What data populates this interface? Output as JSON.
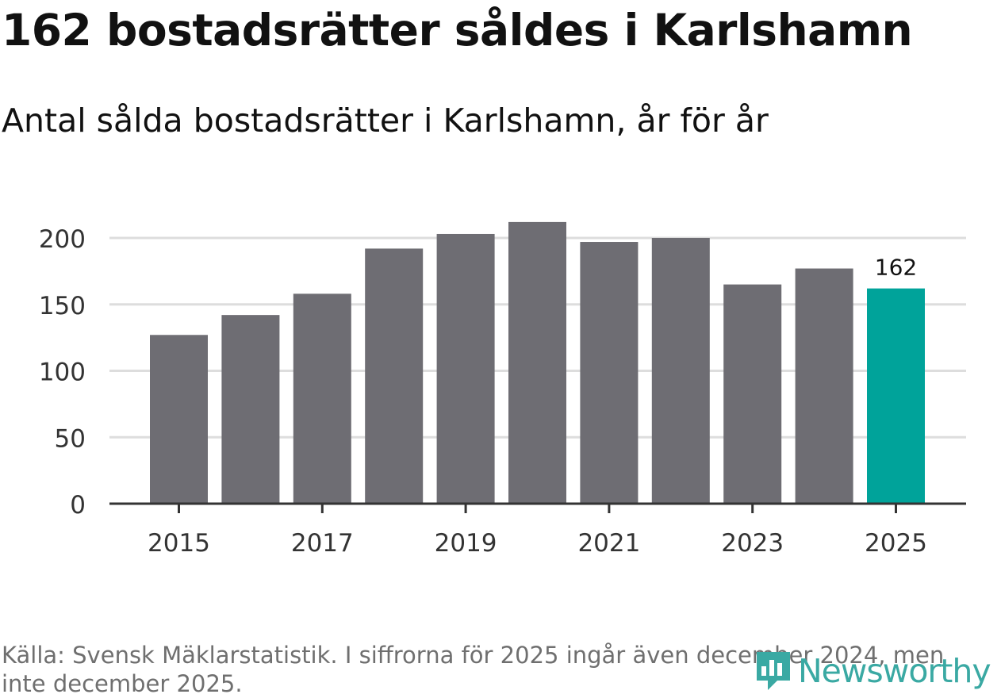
{
  "title": "162 bostadsrätter såldes i Karlshamn",
  "subtitle": "Antal sålda bostadsrätter i Karlshamn, år för år",
  "source": "Källa: Svensk Mäklarstatistik. I siffrorna för 2025 ingår även december 2024, men inte december 2025.",
  "brand": {
    "name": "Newsworthy",
    "icon": "newsworthy-logo-icon",
    "color": "#3aa9a3"
  },
  "colors": {
    "bar": "#6e6d73",
    "highlight": "#00a39a",
    "grid": "#dddddd",
    "axis": "#333333"
  },
  "chart_data": {
    "type": "bar",
    "categories": [
      "2015",
      "2016",
      "2017",
      "2018",
      "2019",
      "2020",
      "2021",
      "2022",
      "2023",
      "2024",
      "2025"
    ],
    "values": [
      127,
      142,
      158,
      192,
      203,
      212,
      197,
      200,
      165,
      177,
      162
    ],
    "highlight": "2025",
    "data_labels": [
      {
        "category": "2025",
        "label": "162"
      }
    ],
    "xticks": [
      "2015",
      "2017",
      "2019",
      "2021",
      "2023",
      "2025"
    ],
    "yticks": [
      0,
      50,
      100,
      150,
      200
    ],
    "ylim": [
      0,
      212
    ],
    "xlabel": "",
    "ylabel": "",
    "grid": true
  }
}
